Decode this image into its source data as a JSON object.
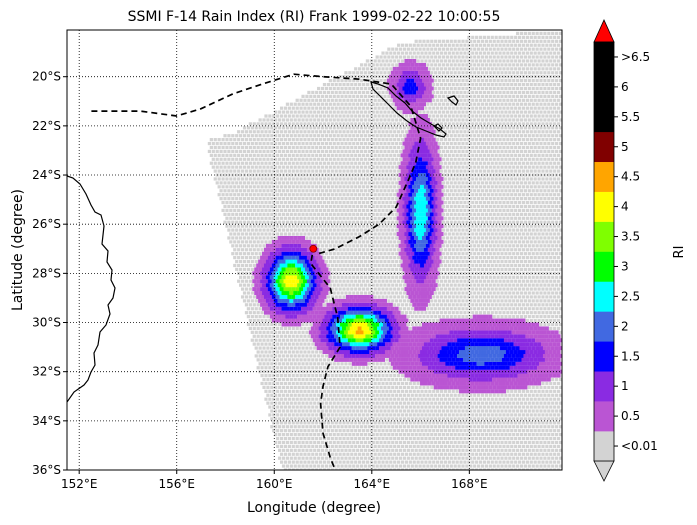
{
  "title": "SSMI F-14 Rain Index (RI) Frank 1999-02-22 10:00:55",
  "xlabel": "Longitude (degree)",
  "ylabel": "Latitude (degree)",
  "colorbar": {
    "label": "RI",
    "bins": [
      {
        "label": "<0.01",
        "color": "#d3d3d3"
      },
      {
        "label": "0.5",
        "color": "#ba55d3"
      },
      {
        "label": "1",
        "color": "#8a2be2"
      },
      {
        "label": "1.5",
        "color": "#0000ff"
      },
      {
        "label": "2",
        "color": "#4169e1"
      },
      {
        "label": "2.5",
        "color": "#00ffff"
      },
      {
        "label": "3",
        "color": "#00ff00"
      },
      {
        "label": "3.5",
        "color": "#7fff00"
      },
      {
        "label": "4",
        "color": "#ffff00"
      },
      {
        "label": "4.5",
        "color": "#ffa500"
      },
      {
        "label": "5",
        "color": "#800000"
      },
      {
        "label": "5.5",
        "color": "#000000"
      },
      {
        "label": "6",
        "color": "#000000"
      },
      {
        "label": ">6.5",
        "color": "#000000"
      }
    ],
    "ticks": [
      "<0.01",
      "0.5",
      "1",
      "1.5",
      "2",
      "2.5",
      "3",
      "3.5",
      "4",
      "4.5",
      "5",
      "5.5",
      "6",
      ">6.5"
    ],
    "over_color": "#ff0000",
    "under_color": "#d3d3d3"
  },
  "chart_data": {
    "type": "heatmap",
    "title": "SSMI F-14 Rain Index (RI) Frank 1999-02-22 10:00:55",
    "xlabel": "Longitude (degree)",
    "ylabel": "Latitude (degree)",
    "xlim": [
      151.5,
      171.8
    ],
    "ylim": [
      -36,
      -18.1
    ],
    "xticks": [
      {
        "v": 152,
        "label": "152°E"
      },
      {
        "v": 156,
        "label": "156°E"
      },
      {
        "v": 160,
        "label": "160°E"
      },
      {
        "v": 164,
        "label": "164°E"
      },
      {
        "v": 168,
        "label": "168°E"
      }
    ],
    "yticks": [
      {
        "v": -20,
        "label": "20°S"
      },
      {
        "v": -22,
        "label": "22°S"
      },
      {
        "v": -24,
        "label": "24°S"
      },
      {
        "v": -26,
        "label": "26°S"
      },
      {
        "v": -28,
        "label": "28°S"
      },
      {
        "v": -30,
        "label": "30°S"
      },
      {
        "v": -32,
        "label": "32°S"
      },
      {
        "v": -34,
        "label": "34°S"
      },
      {
        "v": -36,
        "label": "36°S"
      }
    ],
    "grid": true,
    "swath": {
      "corners_lonlat": [
        [
          158.3,
          -22.3
        ],
        [
          165.2,
          -18.6
        ],
        [
          171.8,
          -18.1
        ],
        [
          171.8,
          -36.0
        ],
        [
          160.3,
          -36.0
        ],
        [
          157.2,
          -22.6
        ]
      ]
    },
    "track": [
      [
        152.5,
        -21.4
      ],
      [
        154.5,
        -21.4
      ],
      [
        156.0,
        -21.6
      ],
      [
        157.0,
        -21.3
      ],
      [
        158.3,
        -20.7
      ],
      [
        159.5,
        -20.3
      ],
      [
        160.8,
        -19.9
      ],
      [
        162.0,
        -20.0
      ],
      [
        163.5,
        -20.1
      ],
      [
        164.8,
        -20.3
      ],
      [
        165.6,
        -21.2
      ],
      [
        166.0,
        -22.5
      ],
      [
        165.8,
        -23.5
      ],
      [
        165.5,
        -24.2
      ],
      [
        165.0,
        -25.3
      ],
      [
        164.3,
        -26.0
      ],
      [
        163.5,
        -26.5
      ],
      [
        162.5,
        -27.0
      ],
      [
        161.8,
        -27.2
      ],
      [
        161.6,
        -27.0
      ],
      [
        161.5,
        -27.6
      ],
      [
        162.3,
        -28.6
      ],
      [
        162.6,
        -29.8
      ],
      [
        162.7,
        -31.0
      ],
      [
        162.2,
        -31.8
      ],
      [
        162.0,
        -32.6
      ],
      [
        161.9,
        -33.3
      ],
      [
        162.0,
        -34.5
      ],
      [
        162.3,
        -35.5
      ],
      [
        162.5,
        -36.0
      ]
    ],
    "storm_center": [
      161.6,
      -27.0
    ],
    "rain_regions": [
      {
        "name": "western-core",
        "lon": 160.7,
        "lat": -28.3,
        "rx": 1.0,
        "ry": 1.2,
        "peak_ri": 3.5
      },
      {
        "name": "central-core",
        "lon": 163.5,
        "lat": -30.3,
        "rx": 1.3,
        "ry": 0.9,
        "peak_ri": 3.8
      },
      {
        "name": "northern-band",
        "lon": 166.0,
        "lat": -25.5,
        "rx": 0.6,
        "ry": 2.6,
        "peak_ri": 2.2
      },
      {
        "name": "eastern-band",
        "lon": 168.5,
        "lat": -31.3,
        "rx": 2.5,
        "ry": 1.0,
        "peak_ri": 1.5
      },
      {
        "name": "northern-cluster",
        "lon": 165.6,
        "lat": -20.4,
        "rx": 0.6,
        "ry": 0.7,
        "peak_ri": 1.0
      }
    ]
  }
}
